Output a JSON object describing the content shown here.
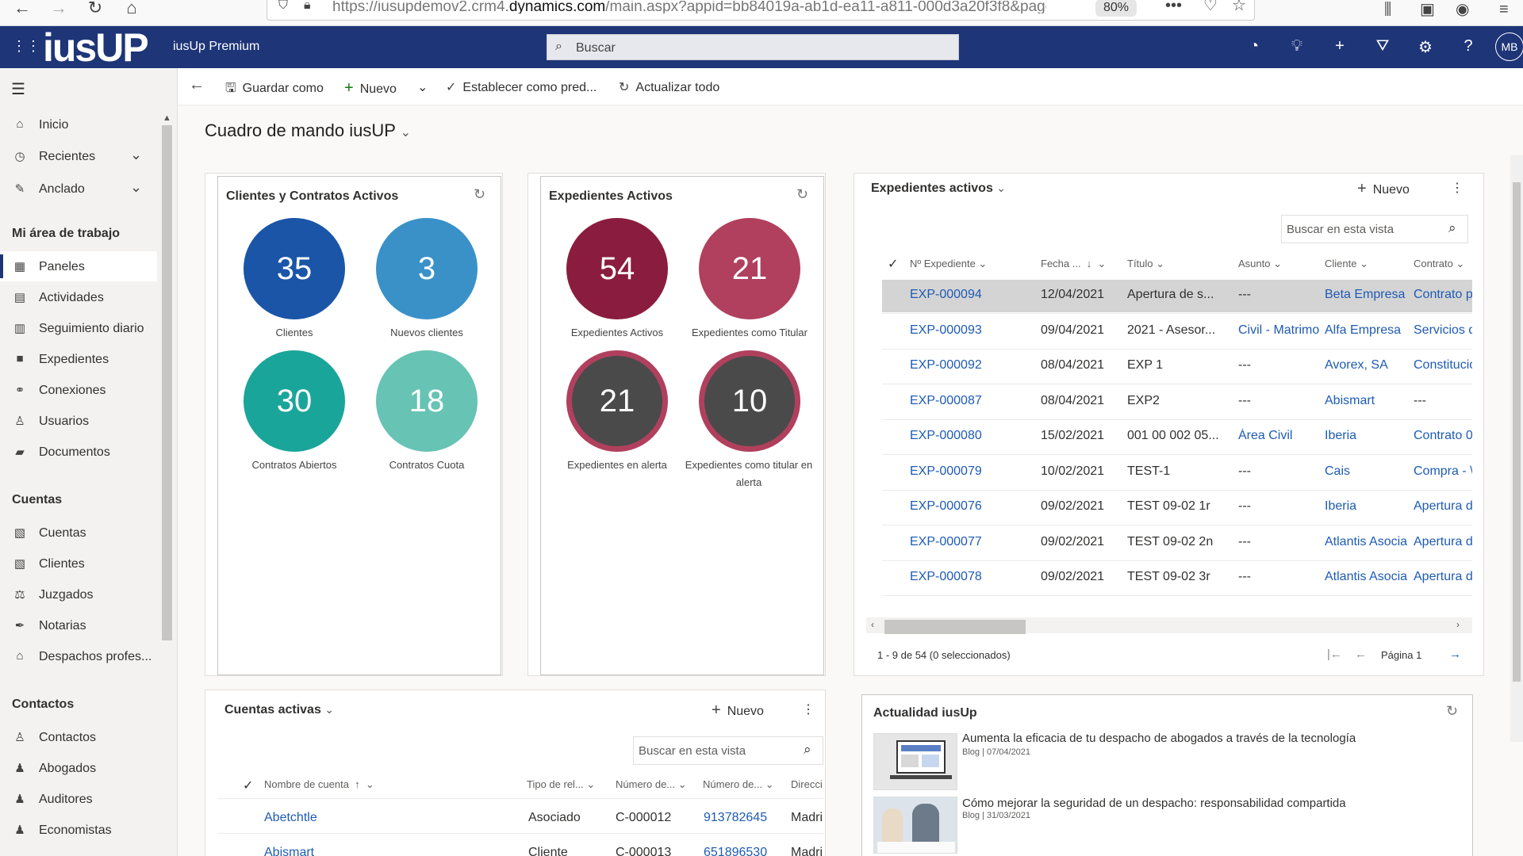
{
  "browser": {
    "url_prefix": "https://iusupdemov2.crm4.",
    "url_domain": "dynamics.com",
    "url_suffix": "/main.aspx?appid=bb84019a-ab1d-ea11-a811-000d3a20f3f8&pagety",
    "zoom": "80%"
  },
  "header": {
    "logo": "iusUP",
    "app_name": "iusUp Premium",
    "search_placeholder": "Buscar",
    "avatar_initials": "MB"
  },
  "sidebar": {
    "top_items": [
      {
        "label": "Inicio",
        "icon": "home-icon"
      },
      {
        "label": "Recientes",
        "icon": "clock-icon"
      },
      {
        "label": "Anclado",
        "icon": "pin-icon"
      }
    ],
    "sections": {
      "workspace": "Mi área de trabajo",
      "accounts": "Cuentas",
      "contacts": "Contactos"
    },
    "workspace_items": [
      "Paneles",
      "Actividades",
      "Seguimiento diario",
      "Expedientes",
      "Conexiones",
      "Usuarios",
      "Documentos"
    ],
    "accounts_items": [
      "Cuentas",
      "Clientes",
      "Juzgados",
      "Notarias",
      "Despachos profes..."
    ],
    "contacts_items": [
      "Contactos",
      "Abogados",
      "Auditores",
      "Economistas"
    ]
  },
  "commandbar": {
    "save_as": "Guardar como",
    "new": "Nuevo",
    "set_default": "Establecer como pred...",
    "refresh_all": "Actualizar todo"
  },
  "dashboard_title": "Cuadro de mando iusUP",
  "clients_card": {
    "title": "Clientes y Contratos Activos",
    "metrics": [
      {
        "value": "35",
        "label": "Clientes",
        "color": "#1a55a8"
      },
      {
        "value": "3",
        "label": "Nuevos clientes",
        "color": "#3a91c8"
      },
      {
        "value": "30",
        "label": "Contratos Abiertos",
        "color": "#1aa59a"
      },
      {
        "value": "18",
        "label": "Contratos Cuota",
        "color": "#67c3b4"
      }
    ]
  },
  "files_card": {
    "title": "Expedientes Activos",
    "metrics": [
      {
        "value": "54",
        "label": "Expedientes Activos",
        "color": "#8a1d3f"
      },
      {
        "value": "21",
        "label": "Expedientes como Titular",
        "color": "#b0405e"
      },
      {
        "value": "21",
        "label": "Expedientes en alerta",
        "color": "#4a4a4a",
        "ring": "#b0405e"
      },
      {
        "value": "10",
        "label": "Expedientes como titular en alerta",
        "color": "#4a4a4a",
        "ring": "#b0405e"
      }
    ]
  },
  "active_files": {
    "title": "Expedientes activos",
    "new_label": "Nuevo",
    "search_placeholder": "Buscar en esta vista",
    "columns": [
      "Nº Expediente",
      "Fecha ...",
      "Título",
      "Asunto",
      "Cliente",
      "Contrato"
    ],
    "rows": [
      [
        "EXP-000094",
        "12/04/2021",
        "Apertura de s...",
        "---",
        "Beta Empresa",
        "Contrato p"
      ],
      [
        "EXP-000093",
        "09/04/2021",
        "2021 - Asesor...",
        "Civil - Matrimo",
        "Alfa Empresa",
        "Servicios d"
      ],
      [
        "EXP-000092",
        "08/04/2021",
        "EXP 1",
        "---",
        "Avorex, SA",
        "Constitucio"
      ],
      [
        "EXP-000087",
        "08/04/2021",
        "EXP2",
        "---",
        "Abismart",
        "---"
      ],
      [
        "EXP-000080",
        "15/02/2021",
        "001 00 002 05...",
        "Área Civil",
        "Iberia",
        "Contrato 0"
      ],
      [
        "EXP-000079",
        "10/02/2021",
        "TEST-1",
        "---",
        "Cais",
        "Compra - \\"
      ],
      [
        "EXP-000076",
        "09/02/2021",
        "TEST 09-02 1r",
        "---",
        "Iberia",
        "Apertura d"
      ],
      [
        "EXP-000077",
        "09/02/2021",
        "TEST 09-02 2n",
        "---",
        "Atlantis Asocia",
        "Apertura d"
      ],
      [
        "EXP-000078",
        "09/02/2021",
        "TEST 09-02 3r",
        "---",
        "Atlantis Asocia",
        "Apertura d"
      ]
    ],
    "footer": "1 - 9 de 54 (0 seleccionados)",
    "page_label": "Página 1"
  },
  "accounts": {
    "title": "Cuentas activas",
    "new_label": "Nuevo",
    "search_placeholder": "Buscar en esta vista",
    "columns": [
      "Nombre de cuenta",
      "Tipo de rel...",
      "Número de...",
      "Número de...",
      "Direcci"
    ],
    "rows": [
      [
        "Abetchtle",
        "Asociado",
        "C-000012",
        "913782645",
        "Madri"
      ],
      [
        "Abismart",
        "Cliente",
        "C-000013",
        "651896530",
        "Madri"
      ]
    ]
  },
  "news": {
    "title": "Actualidad iusUp",
    "items": [
      {
        "title": "Aumenta la eficacia de tu despacho de abogados a través de la tecnología",
        "meta": "Blog | 07/04/2021"
      },
      {
        "title": "Cómo mejorar la seguridad de un despacho: responsabilidad compartida",
        "meta": "Blog | 31/03/2021"
      }
    ]
  }
}
